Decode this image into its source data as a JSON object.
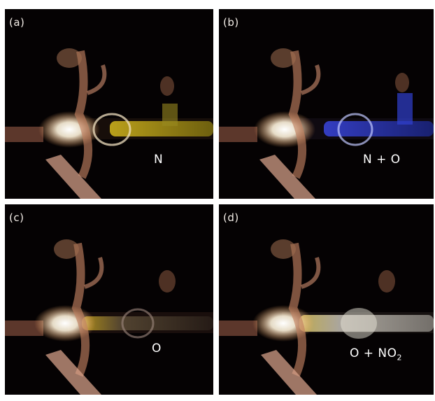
{
  "panels": [
    {
      "id": "a",
      "label": "(a)",
      "species": "N",
      "species_sub": "",
      "glow_color": "#e0c020"
    },
    {
      "id": "b",
      "label": "(b)",
      "species": "N + O",
      "species_sub": "",
      "glow_color": "#2a38c8"
    },
    {
      "id": "c",
      "label": "(c)",
      "species": "O",
      "species_sub": "",
      "glow_color": "#8a7a40"
    },
    {
      "id": "d",
      "label": "(d)",
      "species": "O + NO",
      "species_sub": "2",
      "glow_color": "#d8d6cc"
    }
  ]
}
